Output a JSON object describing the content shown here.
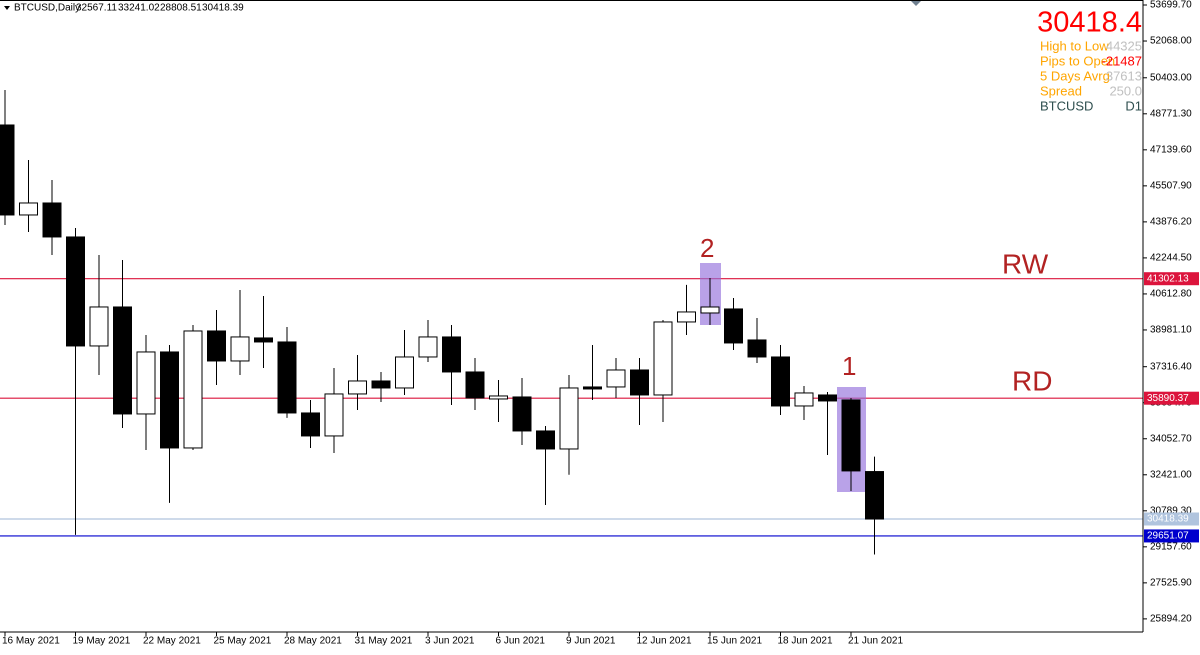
{
  "chart_data": {
    "type": "candlestick",
    "title": "BTCUSD,Daily",
    "categories": [
      "16 May 2021",
      null,
      null,
      "19 May 2021",
      null,
      null,
      "22 May 2021",
      null,
      null,
      "25 May 2021",
      null,
      null,
      "28 May 2021",
      null,
      null,
      "31 May 2021",
      null,
      null,
      "3 Jun 2021",
      null,
      null,
      "6 Jun 2021",
      null,
      null,
      "9 Jun 2021",
      null,
      null,
      "12 Jun 2021",
      null,
      null,
      "15 Jun 2021",
      null,
      null,
      "18 Jun 2021",
      null,
      null,
      "21 Jun 2021",
      null
    ],
    "open": [
      48265,
      44189,
      44732,
      43193,
      38256,
      40022,
      35176,
      37984,
      33636,
      38935,
      37576,
      38619,
      38437,
      35221,
      34180,
      36082,
      36670,
      36353,
      37757,
      38664,
      37078,
      35855,
      35946,
      34406,
      33590,
      36399,
      36399,
      37168,
      36036,
      39343,
      39750,
      39932,
      38528,
      37757,
      35538,
      36036,
      35810,
      32567.11
    ],
    "high": [
      49850,
      46680,
      45774,
      43600,
      42377,
      42150,
      38754,
      38300,
      39207,
      39886,
      40793,
      40521,
      39116,
      35810,
      37259,
      37848,
      37078,
      38980,
      39433,
      39207,
      37712,
      36715,
      36806,
      34632,
      36942,
      38300,
      37712,
      37712,
      39433,
      41020,
      41337,
      40430,
      39524,
      38300,
      36444,
      36172,
      35901,
      33241.02
    ],
    "low": [
      43736,
      43418,
      42377,
      29697,
      36942,
      34542,
      33546,
      31146,
      33546,
      36489,
      36942,
      37259,
      35000,
      33636,
      33410,
      35357,
      35719,
      36036,
      37531,
      35584,
      35357,
      34814,
      33772,
      31055,
      32421,
      35810,
      35900,
      34678,
      34814,
      38754,
      39207,
      38075,
      37486,
      35130,
      34904,
      33318,
      31689,
      28808.51
    ],
    "close": [
      44189,
      44732,
      43193,
      38256,
      40022,
      35176,
      37984,
      33636,
      38935,
      37576,
      38664,
      38437,
      35221,
      34180,
      36082,
      36670,
      36353,
      37757,
      38664,
      37078,
      35901,
      35991,
      34406,
      33590,
      36353,
      36308,
      37168,
      36036,
      39343,
      39796,
      40021,
      38392,
      37757,
      35538,
      36127,
      35765,
      32596,
      30418.39
    ],
    "up_color": "#ffffff",
    "down_color": "#000000",
    "ylim": [
      25300,
      53926
    ],
    "yticks": [
      {
        "value": 53699.7,
        "label": "53699.70"
      },
      {
        "value": 52068,
        "label": "52068.00"
      },
      {
        "value": 50403,
        "label": "50403.00"
      },
      {
        "value": 48771.3,
        "label": "48771.30"
      },
      {
        "value": 47139.6,
        "label": "47139.60"
      },
      {
        "value": 45507.9,
        "label": "45507.90"
      },
      {
        "value": 43876.2,
        "label": "43876.20"
      },
      {
        "value": 42244.5,
        "label": "42244.50"
      },
      {
        "value": 40612.8,
        "label": "40612.80"
      },
      {
        "value": 38981.1,
        "label": "38981.10"
      },
      {
        "value": 37316.4,
        "label": "37316.40"
      },
      {
        "value": 35684.7,
        "label": "35684.70"
      },
      {
        "value": 34052.7,
        "label": "34052.70"
      },
      {
        "value": 32421,
        "label": "32421.00"
      },
      {
        "value": 30789.3,
        "label": "30789.30"
      },
      {
        "value": 29157.6,
        "label": "29157.60"
      },
      {
        "value": 27525.9,
        "label": "27525.90"
      },
      {
        "value": 25894.2,
        "label": "25894.20"
      }
    ],
    "lines": [
      {
        "name": "RW",
        "value": 41302.13,
        "color": "#dc143c"
      },
      {
        "name": "RD",
        "value": 35890.37,
        "color": "#dc143c"
      },
      {
        "value": 30418.39,
        "color": "#b0c4de"
      },
      {
        "value": 29651.07,
        "color": "#0000cd"
      }
    ],
    "annotations": [
      "2",
      "1"
    ]
  },
  "info_panel": {
    "price": "30418.4",
    "rows": [
      {
        "label": "High to Low",
        "value": "44325"
      },
      {
        "label": "Pips to Open",
        "value": "-21487"
      },
      {
        "label": "5 Days Avrg",
        "value": "37613"
      },
      {
        "label": "Spread",
        "value": "250.0"
      }
    ],
    "symbol": "BTCUSD",
    "timeframe": "D1"
  }
}
